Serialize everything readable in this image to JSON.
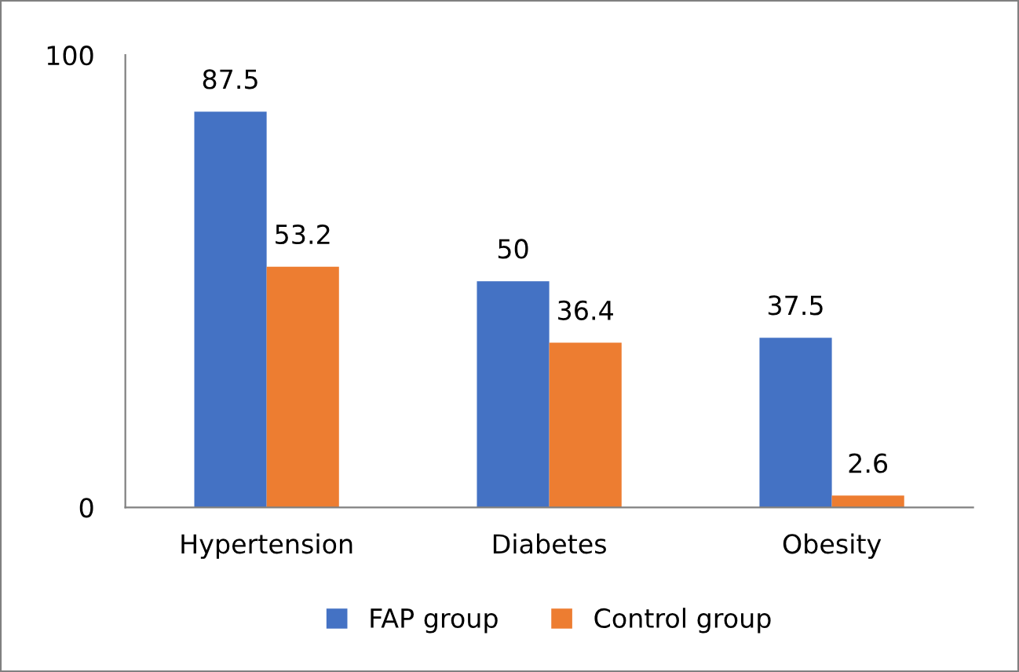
{
  "chart_data": {
    "type": "bar",
    "categories": [
      "Hypertension",
      "Diabetes",
      "Obesity"
    ],
    "series": [
      {
        "name": "FAP group",
        "color": "#4472c4",
        "values": [
          87.5,
          50,
          37.5
        ]
      },
      {
        "name": "Control group",
        "color": "#ed7d31",
        "values": [
          53.2,
          36.4,
          2.6
        ]
      }
    ],
    "ylim": [
      0,
      100
    ],
    "yticks": [
      0,
      100
    ],
    "data_labels": true,
    "legend": "bottom",
    "grid": false
  }
}
